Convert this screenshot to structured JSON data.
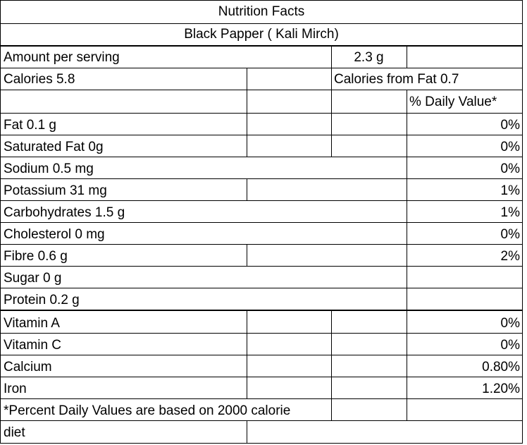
{
  "title": "Nutrition Facts",
  "product": "Black Papper ( Kali Mirch)",
  "serving": {
    "label": "Amount per serving",
    "value": "2.3 g"
  },
  "calories": {
    "label": "Calories 5.8",
    "from_fat": "Calories from Fat 0.7"
  },
  "dv_header": "% Daily Value*",
  "nutrients": [
    {
      "name": "Fat 0.1 g",
      "dv": "0%"
    },
    {
      "name": "Saturated Fat 0g",
      "dv": "0%"
    },
    {
      "name": "Sodium 0.5 mg",
      "dv": "0%"
    },
    {
      "name": "Potassium 31 mg",
      "dv": "1%"
    },
    {
      "name": "Carbohydrates 1.5 g",
      "dv": "1%"
    },
    {
      "name": "Cholesterol 0 mg",
      "dv": "0%"
    },
    {
      "name": "Fibre 0.6 g",
      "dv": "2%"
    },
    {
      "name": "Sugar 0 g",
      "dv": ""
    },
    {
      "name": "Protein 0.2 g",
      "dv": ""
    }
  ],
  "vitamins": [
    {
      "name": "Vitamin A",
      "dv": "0%"
    },
    {
      "name": "Vitamin C",
      "dv": "0%"
    },
    {
      "name": "Calcium",
      "dv": "0.80%"
    },
    {
      "name": "Iron",
      "dv": "1.20%"
    }
  ],
  "footnote": {
    "line1": "*Percent Daily Values are based on 2000 calorie",
    "line2": "diet"
  }
}
